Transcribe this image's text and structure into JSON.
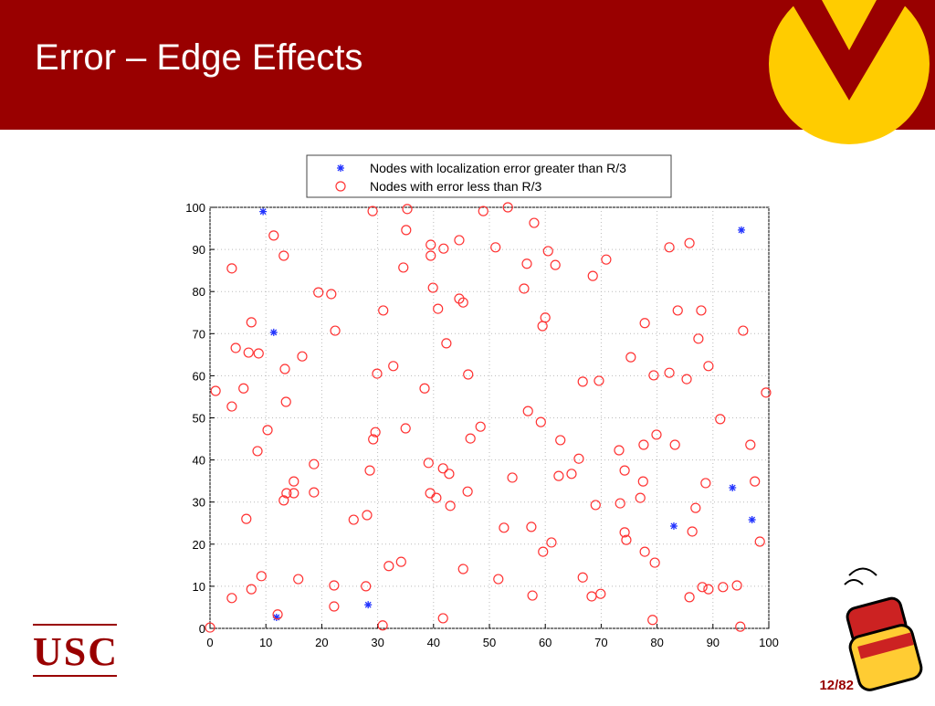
{
  "slide": {
    "title": "Error – Edge Effects",
    "page_number": "12/82",
    "logo": "USC"
  },
  "chart_data": {
    "type": "scatter",
    "xlim": [
      0,
      100
    ],
    "ylim": [
      0,
      100
    ],
    "xticks": [
      0,
      10,
      20,
      30,
      40,
      50,
      60,
      70,
      80,
      90,
      100
    ],
    "yticks": [
      0,
      10,
      20,
      30,
      40,
      50,
      60,
      70,
      80,
      90,
      100
    ],
    "grid": true,
    "legend": "top",
    "series": [
      {
        "name": "Nodes with localization error greater than R/3",
        "color": "#2233ff",
        "marker": "star",
        "x": [
          9.5,
          11.4,
          11.9,
          28.3,
          95.1,
          93.5,
          83,
          97
        ],
        "y": [
          99,
          70.3,
          2.6,
          5.6,
          94.6,
          33.4,
          24.3,
          25.8
        ]
      },
      {
        "name": "Nodes with error less than R/3",
        "color": "#ff3333",
        "marker": "circle",
        "x": [
          1,
          0,
          3.9,
          3.9,
          3.9,
          4.6,
          6,
          6.5,
          6.9,
          7.4,
          7.4,
          8.7,
          8.5,
          9.2,
          10.3,
          11.4,
          12.1,
          13.2,
          13.4,
          13.6,
          13.2,
          13.7,
          15,
          15,
          15.8,
          16.5,
          18.6,
          18.6,
          19.4,
          21.7,
          22.2,
          22.2,
          22.4,
          25.7,
          28.1,
          27.9,
          28.6,
          29.1,
          29.2,
          29.6,
          29.9,
          30.9,
          31,
          32,
          32.8,
          34.2,
          34.6,
          35.1,
          35.3,
          35,
          38.4,
          39.1,
          39.4,
          39.5,
          39.5,
          39.9,
          40.5,
          40.8,
          41.7,
          41.8,
          42.3,
          42.8,
          43,
          44.6,
          44.6,
          45.3,
          45.3,
          41.7,
          46.2,
          46.1,
          46.6,
          48.4,
          48.9,
          51.1,
          51.6,
          52.6,
          53.3,
          54.1,
          56.2,
          56.7,
          56.9,
          57.5,
          57.7,
          58,
          59.2,
          59.5,
          60,
          59.6,
          60.5,
          61.1,
          61.8,
          62.4,
          62.7,
          64.7,
          66,
          66.7,
          66.7,
          68.5,
          68.3,
          69,
          69.6,
          69.9,
          70.9,
          73.2,
          73.4,
          74.2,
          74.2,
          74.5,
          75.3,
          77,
          77.5,
          77.6,
          77.8,
          77.8,
          79.2,
          79.4,
          79.6,
          79.9,
          82.2,
          82.2,
          83.2,
          83.7,
          85.3,
          85.8,
          85.8,
          86.3,
          86.9,
          87.4,
          87.9,
          88.1,
          88.7,
          89.2,
          89.2,
          91.3,
          91.8,
          94.3,
          94.9,
          95.4,
          96.7,
          97.5,
          98.4,
          99.5
        ],
        "y": [
          56.4,
          0.2,
          85.5,
          52.7,
          7.2,
          66.6,
          57,
          26,
          65.5,
          72.7,
          9.3,
          65.3,
          42.1,
          12.4,
          47.1,
          93.3,
          3.3,
          88.5,
          61.6,
          53.8,
          30.4,
          32.1,
          34.9,
          32.1,
          11.7,
          64.6,
          39,
          32.3,
          79.8,
          79.4,
          10.2,
          5.2,
          70.7,
          25.8,
          26.9,
          10,
          37.5,
          99.1,
          44.9,
          46.6,
          60.5,
          0.7,
          75.5,
          14.8,
          62.3,
          15.8,
          85.7,
          94.6,
          99.6,
          47.5,
          57,
          39.3,
          32.1,
          91.1,
          88.5,
          80.9,
          31,
          75.9,
          38,
          90.2,
          67.7,
          36.7,
          29.1,
          92.2,
          78.3,
          77.4,
          14.1,
          2.4,
          60.3,
          32.5,
          45.1,
          47.9,
          99.1,
          90.5,
          11.7,
          23.9,
          100,
          35.8,
          80.7,
          86.6,
          51.6,
          24.1,
          7.8,
          96.3,
          49,
          71.8,
          73.8,
          18.2,
          89.6,
          20.4,
          86.3,
          36.2,
          44.7,
          36.7,
          40.3,
          58.6,
          12.1,
          83.7,
          7.6,
          29.3,
          58.8,
          8.2,
          87.6,
          42.3,
          29.7,
          37.5,
          22.8,
          21,
          64.4,
          31,
          34.9,
          43.6,
          72.5,
          18.2,
          2,
          60.1,
          15.6,
          46,
          90.5,
          60.7,
          43.6,
          75.5,
          59.2,
          91.5,
          7.4,
          23,
          28.6,
          68.8,
          75.5,
          9.8,
          34.5,
          9.3,
          62.3,
          49.7,
          9.8,
          10.2,
          0.4,
          70.7,
          43.6,
          34.9,
          20.6,
          56
        ]
      }
    ]
  }
}
